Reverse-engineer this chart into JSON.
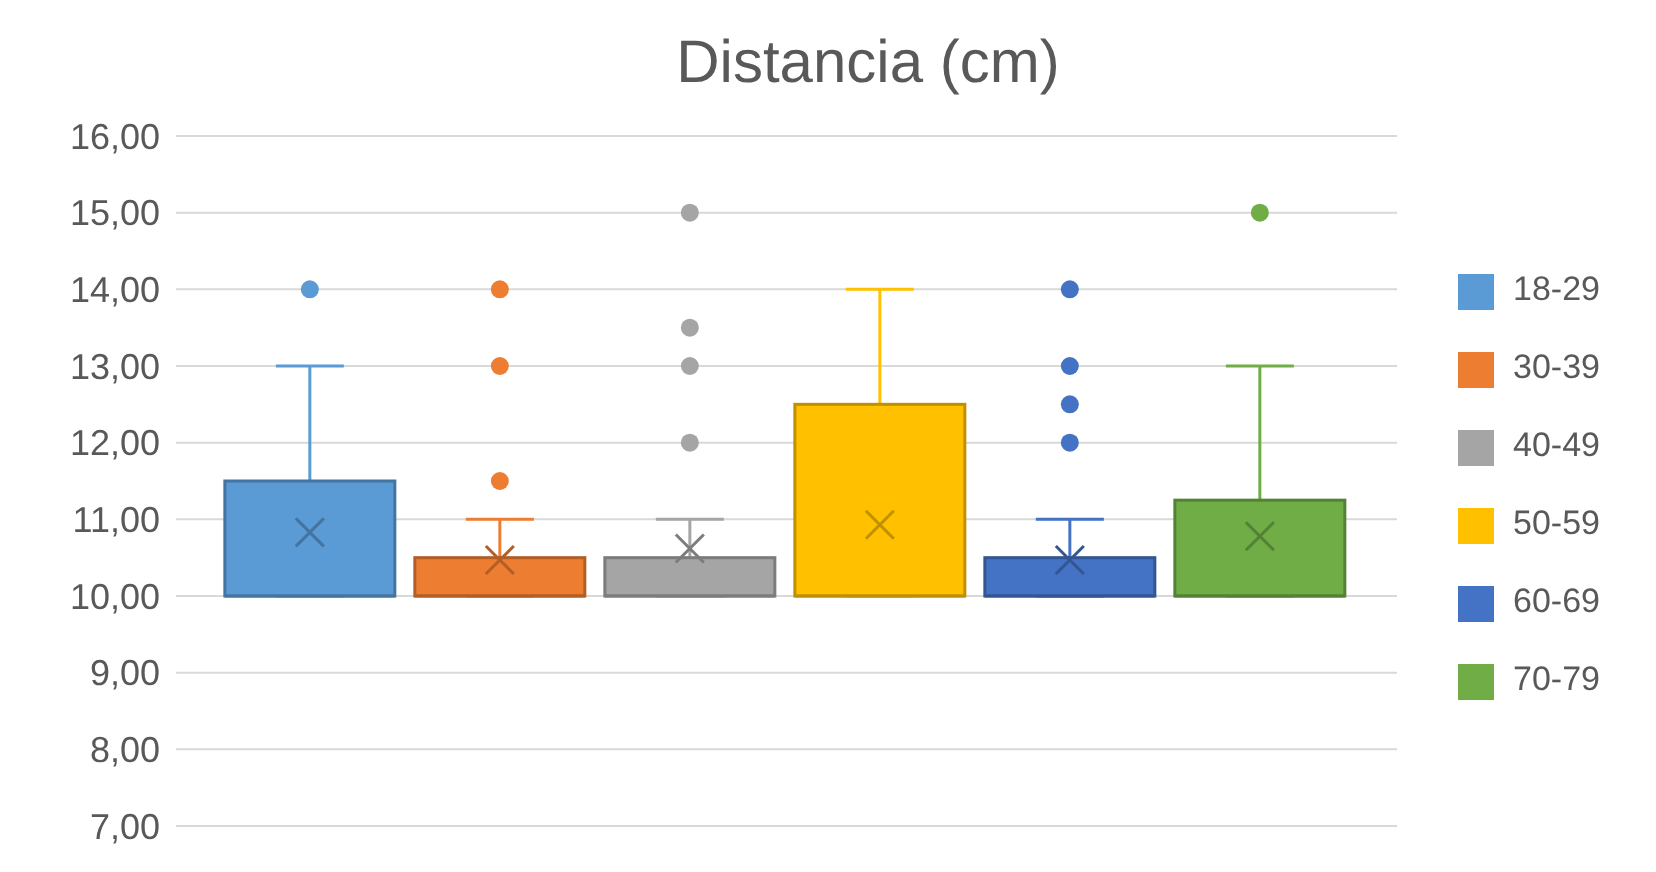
{
  "chart_data": {
    "type": "box",
    "title": "Distancia (cm)",
    "categories": [
      null
    ],
    "ylim": [
      7,
      16
    ],
    "yticks": [
      {
        "value": 7,
        "label": "7,00"
      },
      {
        "value": 8,
        "label": "8,00"
      },
      {
        "value": 9,
        "label": "9,00"
      },
      {
        "value": 10,
        "label": "10,00"
      },
      {
        "value": 11,
        "label": "11,00"
      },
      {
        "value": 12,
        "label": "12,00"
      },
      {
        "value": 13,
        "label": "13,00"
      },
      {
        "value": 14,
        "label": "14,00"
      },
      {
        "value": 15,
        "label": "15,00"
      },
      {
        "value": 16,
        "label": "16,00"
      }
    ],
    "grid": "y",
    "legend": "right",
    "series": [
      {
        "name": "18-29",
        "color": "#5b9bd5",
        "boxes": [
          {
            "low": 10,
            "q1": 10,
            "median": 10,
            "q3": 11.5,
            "high": 13,
            "mean": 10.83,
            "outliers": [
              14
            ]
          }
        ]
      },
      {
        "name": "30-39",
        "color": "#ed7d31",
        "boxes": [
          {
            "low": 10,
            "q1": 10,
            "median": 10,
            "q3": 10.5,
            "high": 11,
            "mean": 10.47,
            "outliers": [
              11.5,
              13,
              14
            ]
          }
        ]
      },
      {
        "name": "40-49",
        "color": "#a5a5a5",
        "boxes": [
          {
            "low": 10,
            "q1": 10,
            "median": 10,
            "q3": 10.5,
            "high": 11,
            "mean": 10.62,
            "outliers": [
              12,
              13,
              13.5,
              15
            ]
          }
        ]
      },
      {
        "name": "50-59",
        "color": "#ffc000",
        "boxes": [
          {
            "low": 10,
            "q1": 10,
            "median": 10,
            "q3": 12.5,
            "high": 14,
            "mean": 10.93
          }
        ]
      },
      {
        "name": "60-69",
        "color": "#4472c4",
        "boxes": [
          {
            "low": 10,
            "q1": 10,
            "median": 10,
            "q3": 10.5,
            "high": 11,
            "mean": 10.47,
            "outliers": [
              12,
              12.5,
              13,
              14
            ]
          }
        ]
      },
      {
        "name": "70-79",
        "color": "#70ad47",
        "boxes": [
          {
            "low": 10,
            "q1": 10,
            "median": 10,
            "q3": 11.25,
            "high": 13,
            "mean": 10.78,
            "outliers": [
              15
            ]
          }
        ]
      }
    ]
  }
}
